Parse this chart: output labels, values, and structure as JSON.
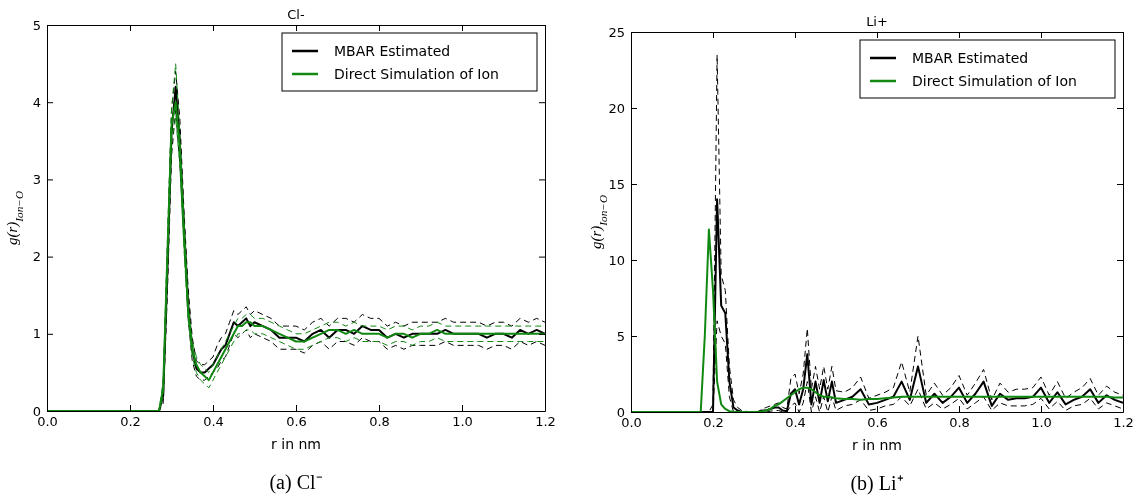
{
  "chart_data": [
    {
      "type": "line",
      "title": "Cl-",
      "xlabel": "r in nm",
      "ylabel": "g(r)$_{Ion−O}$",
      "annotations": [
        "(a) Cl⁻"
      ],
      "legend": "top right",
      "line_style": "solid",
      "marker": "none",
      "xlim": [
        0,
        1.2
      ],
      "xticks": [
        {
          "value": 0,
          "label": "0.0"
        },
        {
          "value": 0.2,
          "label": "0.2"
        },
        {
          "value": 0.4,
          "label": "0.4"
        },
        {
          "value": 0.6,
          "label": "0.6"
        },
        {
          "value": 0.8,
          "label": "0.8"
        },
        {
          "value": 1.0,
          "label": "1.0"
        },
        {
          "value": 1.2,
          "label": "1.2"
        }
      ],
      "ylim": [
        0,
        5
      ],
      "yticks": [
        0,
        1,
        2,
        3,
        4,
        5
      ],
      "x": [
        0,
        0.26,
        0.27,
        0.28,
        0.29,
        0.3,
        0.31,
        0.32,
        0.33,
        0.34,
        0.35,
        0.36,
        0.37,
        0.38,
        0.39,
        0.4,
        0.41,
        0.42,
        0.43,
        0.44,
        0.45,
        0.46,
        0.47,
        0.48,
        0.49,
        0.5,
        0.52,
        0.54,
        0.56,
        0.58,
        0.6,
        0.62,
        0.64,
        0.66,
        0.68,
        0.7,
        0.72,
        0.74,
        0.76,
        0.78,
        0.8,
        0.82,
        0.84,
        0.86,
        0.88,
        0.9,
        0.92,
        0.94,
        0.96,
        0.98,
        1.0,
        1.02,
        1.04,
        1.06,
        1.08,
        1.1,
        1.12,
        1.14,
        1.16,
        1.18,
        1.2
      ],
      "series": [
        {
          "name": "MBAR Estimated",
          "color": "#000000",
          "values": [
            0,
            0,
            0,
            0.2,
            1.8,
            3.6,
            4.2,
            3.5,
            2.4,
            1.4,
            0.8,
            0.55,
            0.5,
            0.5,
            0.55,
            0.6,
            0.7,
            0.8,
            0.85,
            1.0,
            1.15,
            1.1,
            1.15,
            1.2,
            1.1,
            1.15,
            1.1,
            1.05,
            0.95,
            0.95,
            0.95,
            0.9,
            1.0,
            1.05,
            0.95,
            1.05,
            1.05,
            1.0,
            1.1,
            1.05,
            1.05,
            0.95,
            1.0,
            0.95,
            1.0,
            1.0,
            1.0,
            1.0,
            1.05,
            1.0,
            1.0,
            1.0,
            1.0,
            0.95,
            1.0,
            1.0,
            0.95,
            1.05,
            1.0,
            1.05,
            1.0
          ]
        },
        {
          "color": "#000000",
          "line_style": "dashed",
          "values": [
            0,
            0,
            0,
            0.1,
            1.5,
            3.3,
            3.9,
            3.2,
            2.2,
            1.2,
            0.65,
            0.45,
            0.4,
            0.4,
            0.45,
            0.5,
            0.55,
            0.65,
            0.7,
            0.85,
            1.0,
            0.95,
            1.0,
            1.05,
            0.95,
            1.0,
            0.95,
            0.9,
            0.8,
            0.8,
            0.8,
            0.75,
            0.85,
            0.9,
            0.8,
            0.9,
            0.9,
            0.85,
            0.95,
            0.9,
            0.9,
            0.8,
            0.85,
            0.8,
            0.85,
            0.85,
            0.85,
            0.85,
            0.9,
            0.85,
            0.85,
            0.85,
            0.85,
            0.8,
            0.85,
            0.85,
            0.8,
            0.9,
            0.85,
            0.9,
            0.85
          ]
        },
        {
          "color": "#000000",
          "line_style": "dashed",
          "values": [
            0,
            0,
            0,
            0.3,
            2.1,
            3.9,
            4.4,
            3.8,
            2.6,
            1.6,
            0.95,
            0.65,
            0.6,
            0.6,
            0.65,
            0.7,
            0.85,
            0.95,
            1.0,
            1.15,
            1.3,
            1.25,
            1.3,
            1.35,
            1.25,
            1.3,
            1.25,
            1.2,
            1.1,
            1.1,
            1.1,
            1.05,
            1.15,
            1.2,
            1.1,
            1.2,
            1.2,
            1.15,
            1.25,
            1.2,
            1.2,
            1.1,
            1.15,
            1.1,
            1.15,
            1.15,
            1.15,
            1.15,
            1.2,
            1.15,
            1.15,
            1.15,
            1.15,
            1.1,
            1.15,
            1.15,
            1.1,
            1.2,
            1.15,
            1.2,
            1.15
          ]
        },
        {
          "name": "Direct Simulation of Ion",
          "color": "#118811",
          "values": [
            0,
            0,
            0,
            0.3,
            2.0,
            3.7,
            4.0,
            3.4,
            2.3,
            1.3,
            0.8,
            0.6,
            0.5,
            0.45,
            0.4,
            0.5,
            0.6,
            0.7,
            0.8,
            0.9,
            1.0,
            1.1,
            1.1,
            1.15,
            1.15,
            1.1,
            1.1,
            1.05,
            1.0,
            0.95,
            0.9,
            0.9,
            0.95,
            1.0,
            1.05,
            1.05,
            1.0,
            1.05,
            1.0,
            1.0,
            1.0,
            0.95,
            1.0,
            1.0,
            0.95,
            1.0,
            1.0,
            1.05,
            1.0,
            1.0,
            1.0,
            1.0,
            1.0,
            1.0,
            1.0,
            1.0,
            1.0,
            1.0,
            1.0,
            1.0,
            1.0
          ]
        },
        {
          "color": "#118811",
          "line_style": "dashed",
          "values": [
            0,
            0,
            0,
            0.2,
            1.8,
            3.5,
            3.8,
            3.2,
            2.1,
            1.2,
            0.7,
            0.5,
            0.4,
            0.35,
            0.3,
            0.4,
            0.5,
            0.6,
            0.7,
            0.8,
            0.9,
            1.0,
            1.0,
            1.05,
            1.05,
            1.0,
            1.0,
            0.95,
            0.9,
            0.85,
            0.8,
            0.8,
            0.85,
            0.9,
            0.95,
            0.95,
            0.9,
            0.95,
            0.9,
            0.9,
            0.9,
            0.85,
            0.9,
            0.9,
            0.85,
            0.9,
            0.9,
            0.95,
            0.9,
            0.9,
            0.9,
            0.9,
            0.9,
            0.9,
            0.9,
            0.9,
            0.9,
            0.9,
            0.9,
            0.9,
            0.9
          ]
        },
        {
          "color": "#118811",
          "line_style": "dashed",
          "values": [
            0,
            0,
            0,
            0.4,
            2.2,
            3.9,
            4.5,
            3.6,
            2.5,
            1.4,
            0.9,
            0.7,
            0.6,
            0.55,
            0.5,
            0.6,
            0.7,
            0.8,
            0.9,
            1.0,
            1.1,
            1.2,
            1.2,
            1.25,
            1.25,
            1.2,
            1.2,
            1.15,
            1.1,
            1.05,
            1.0,
            1.0,
            1.05,
            1.1,
            1.15,
            1.15,
            1.1,
            1.15,
            1.1,
            1.1,
            1.1,
            1.05,
            1.1,
            1.1,
            1.05,
            1.1,
            1.1,
            1.15,
            1.1,
            1.1,
            1.1,
            1.1,
            1.1,
            1.1,
            1.1,
            1.1,
            1.1,
            1.1,
            1.1,
            1.1,
            1.1
          ]
        }
      ]
    },
    {
      "type": "line",
      "title": "Li+",
      "xlabel": "r in nm",
      "ylabel": "g(r)$_{Ion−O}$",
      "annotations": [
        "(b) Li⁺"
      ],
      "legend": "top right",
      "line_style": "solid",
      "marker": "none",
      "xlim": [
        0,
        1.2
      ],
      "xticks": [
        {
          "value": 0,
          "label": "0.0"
        },
        {
          "value": 0.2,
          "label": "0.2"
        },
        {
          "value": 0.4,
          "label": "0.4"
        },
        {
          "value": 0.6,
          "label": "0.6"
        },
        {
          "value": 0.8,
          "label": "0.8"
        },
        {
          "value": 1.0,
          "label": "1.0"
        },
        {
          "value": 1.2,
          "label": "1.2"
        }
      ],
      "ylim": [
        0,
        25
      ],
      "yticks": [
        0,
        5,
        10,
        15,
        20,
        25
      ],
      "x": [
        0,
        0.16,
        0.17,
        0.18,
        0.19,
        0.2,
        0.21,
        0.22,
        0.23,
        0.24,
        0.25,
        0.26,
        0.27,
        0.28,
        0.29,
        0.3,
        0.31,
        0.32,
        0.33,
        0.34,
        0.35,
        0.36,
        0.37,
        0.38,
        0.39,
        0.4,
        0.41,
        0.42,
        0.43,
        0.44,
        0.45,
        0.46,
        0.47,
        0.48,
        0.49,
        0.5,
        0.52,
        0.54,
        0.56,
        0.58,
        0.6,
        0.62,
        0.64,
        0.66,
        0.68,
        0.7,
        0.72,
        0.74,
        0.76,
        0.78,
        0.8,
        0.82,
        0.84,
        0.86,
        0.88,
        0.9,
        0.92,
        0.94,
        0.96,
        0.98,
        1.0,
        1.02,
        1.04,
        1.06,
        1.08,
        1.1,
        1.12,
        1.14,
        1.16,
        1.18,
        1.2
      ],
      "series": [
        {
          "name": "MBAR Estimated",
          "color": "#000000",
          "values": [
            0,
            0,
            0,
            0,
            0,
            0,
            14.0,
            7.0,
            6.5,
            2.0,
            0.3,
            0.1,
            0,
            0,
            0,
            0,
            0,
            0.1,
            0.1,
            0.2,
            0.3,
            0.3,
            0.1,
            0.05,
            1.2,
            1.5,
            0.5,
            1.5,
            3.8,
            0.5,
            2.0,
            0.6,
            2.1,
            0.7,
            2.0,
            0.6,
            0.8,
            1.0,
            1.5,
            0.5,
            0.6,
            0.8,
            1.0,
            2.0,
            0.8,
            3.0,
            0.6,
            1.2,
            0.6,
            1.0,
            1.6,
            0.6,
            1.2,
            2.0,
            0.4,
            1.2,
            0.8,
            0.9,
            0.9,
            1.0,
            1.6,
            0.6,
            1.3,
            0.5,
            0.8,
            1.0,
            1.5,
            0.6,
            1.1,
            0.8,
            0.6
          ]
        },
        {
          "color": "#000000",
          "line_style": "dashed",
          "values": [
            0,
            0,
            0,
            0,
            0,
            0,
            6.0,
            5.0,
            4.5,
            1.0,
            0,
            0,
            0,
            0,
            0,
            0,
            0,
            0,
            0,
            0.05,
            0.1,
            0.1,
            0,
            0,
            0.4,
            0.6,
            0,
            0.6,
            2.0,
            0,
            1.0,
            0,
            1.0,
            0,
            1.0,
            0.1,
            0.4,
            0.5,
            0.8,
            0.1,
            0.2,
            0.4,
            0.5,
            1.0,
            0.4,
            1.5,
            0.2,
            0.6,
            0.2,
            0.5,
            0.9,
            0.2,
            0.6,
            1.0,
            0.1,
            0.6,
            0.4,
            0.4,
            0.4,
            0.5,
            0.9,
            0.2,
            0.7,
            0.1,
            0.4,
            0.5,
            0.9,
            0.2,
            0.6,
            0.4,
            0.2
          ]
        },
        {
          "color": "#000000",
          "line_style": "dashed",
          "values": [
            0,
            0,
            0,
            0,
            0,
            0.5,
            23.5,
            9.0,
            8.0,
            3.0,
            0.8,
            0.3,
            0.1,
            0.05,
            0,
            0,
            0,
            0.2,
            0.3,
            0.4,
            0.5,
            0.6,
            0.3,
            0.2,
            2.2,
            2.5,
            1.2,
            2.5,
            5.5,
            1.5,
            3.0,
            1.5,
            3.0,
            1.5,
            3.0,
            1.4,
            1.3,
            1.6,
            2.3,
            0.9,
            1.1,
            1.3,
            1.6,
            3.3,
            1.3,
            5.0,
            1.1,
            1.9,
            1.1,
            1.6,
            2.4,
            1.1,
            1.9,
            2.8,
            0.8,
            1.9,
            1.3,
            1.5,
            1.5,
            1.6,
            2.3,
            1.1,
            2.0,
            0.9,
            1.3,
            1.6,
            2.2,
            1.1,
            1.7,
            1.3,
            1.1
          ]
        },
        {
          "name": "Direct Simulation of Ion",
          "color": "#118811",
          "values": [
            0,
            0,
            0,
            5.0,
            12.0,
            8.0,
            2.0,
            0.5,
            0.2,
            0.05,
            0.02,
            0,
            0,
            0,
            0,
            0,
            0.02,
            0.05,
            0.1,
            0.2,
            0.4,
            0.5,
            0.7,
            0.9,
            1.1,
            1.3,
            1.5,
            1.6,
            1.6,
            1.5,
            1.3,
            1.1,
            1.0,
            1.0,
            0.95,
            0.9,
            0.85,
            0.85,
            0.8,
            0.85,
            0.85,
            0.9,
            0.95,
            1.0,
            1.0,
            1.0,
            1.0,
            1.0,
            1.0,
            1.0,
            1.0,
            1.0,
            1.0,
            1.0,
            1.0,
            1.0,
            1.0,
            1.0,
            1.0,
            1.0,
            1.0,
            1.0,
            1.0,
            1.0,
            1.0,
            1.0,
            1.0,
            1.0,
            1.0,
            0.95,
            0.95
          ]
        }
      ]
    }
  ]
}
